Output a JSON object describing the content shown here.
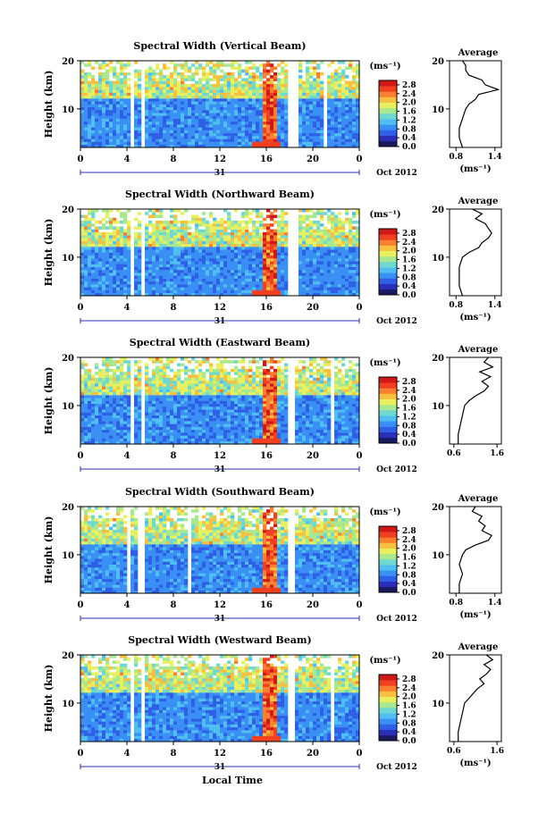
{
  "x_axis_label": "Local Time",
  "colors": {
    "colormap": [
      "#1a1a60",
      "#2a2fb8",
      "#2f5fe6",
      "#3a8ff5",
      "#4fbef0",
      "#6fd8d0",
      "#a8e890",
      "#e8f060",
      "#f8c040",
      "#f88030",
      "#f04020",
      "#d01818"
    ],
    "line": "#000000"
  },
  "chart_data": [
    {
      "type": "heatmap",
      "title": "Spectral Width (Vertical Beam)",
      "ylabel": "Height (km)",
      "xlim": [
        0,
        24
      ],
      "ylim": [
        2,
        20
      ],
      "x_ticks": [
        "0",
        "4",
        "8",
        "12",
        "16",
        "20",
        "0"
      ],
      "y_ticks": [
        "10",
        "20"
      ],
      "date_label": "31",
      "month_label": "Oct 2012",
      "colorbar": {
        "unit": "(ms⁻¹)",
        "ticks": [
          "0.0",
          "0.4",
          "0.8",
          "1.2",
          "1.6",
          "2.0",
          "2.4",
          "2.8"
        ],
        "range": [
          0,
          3.0
        ]
      },
      "data_gaps_hours": [
        [
          4.2,
          4.6
        ],
        [
          5.1,
          5.6
        ],
        [
          18.0,
          18.7
        ],
        [
          21.0,
          21.3
        ]
      ],
      "average": {
        "title": "Average",
        "xlabel": "(ms⁻¹)",
        "x_ticks": [
          "0.8",
          "1.4"
        ],
        "y_ticks": [
          "10",
          "20"
        ],
        "heights": [
          2,
          4,
          6,
          8,
          10,
          11,
          12,
          13,
          14,
          15,
          16,
          17,
          18,
          19,
          20
        ],
        "values": [
          0.9,
          0.85,
          0.85,
          0.9,
          0.95,
          1.0,
          1.1,
          1.15,
          1.45,
          1.25,
          1.2,
          1.0,
          0.95,
          0.95,
          0.9
        ]
      }
    },
    {
      "type": "heatmap",
      "title": "Spectral Width (Northward Beam)",
      "ylabel": "Height (km)",
      "xlim": [
        0,
        24
      ],
      "ylim": [
        2,
        20
      ],
      "x_ticks": [
        "0",
        "4",
        "8",
        "12",
        "16",
        "20",
        "0"
      ],
      "y_ticks": [
        "10",
        "20"
      ],
      "date_label": "31",
      "month_label": "Oct 2012",
      "colorbar": {
        "unit": "(ms⁻¹)",
        "ticks": [
          "0.0",
          "0.4",
          "0.8",
          "1.2",
          "1.6",
          "2.0",
          "2.4",
          "2.8"
        ],
        "range": [
          0,
          3.0
        ]
      },
      "data_gaps_hours": [
        [
          4.2,
          4.6
        ],
        [
          5.1,
          5.6
        ],
        [
          18.0,
          18.7
        ]
      ],
      "average": {
        "title": "Average",
        "xlabel": "(ms⁻¹)",
        "x_ticks": [
          "0.8",
          "1.4"
        ],
        "y_ticks": [
          "10",
          "20"
        ],
        "heights": [
          2,
          4,
          6,
          8,
          10,
          11,
          12,
          13,
          14,
          15,
          16,
          17,
          18,
          19,
          20
        ],
        "values": [
          0.9,
          0.85,
          0.85,
          0.85,
          0.9,
          1.0,
          1.15,
          1.2,
          1.3,
          1.35,
          1.3,
          1.25,
          1.1,
          1.2,
          1.05
        ]
      }
    },
    {
      "type": "heatmap",
      "title": "Spectral Width (Eastward Beam)",
      "ylabel": "Height (km)",
      "xlim": [
        0,
        24
      ],
      "ylim": [
        2,
        20
      ],
      "x_ticks": [
        "0",
        "4",
        "8",
        "12",
        "16",
        "20",
        "0"
      ],
      "y_ticks": [
        "10",
        "20"
      ],
      "date_label": "31",
      "month_label": "Oct 2012",
      "colorbar": {
        "unit": "(ms⁻¹)",
        "ticks": [
          "0.0",
          "0.4",
          "0.8",
          "1.2",
          "1.6",
          "2.0",
          "2.4",
          "2.8"
        ],
        "range": [
          0,
          3.0
        ]
      },
      "data_gaps_hours": [
        [
          4.2,
          4.6
        ],
        [
          5.1,
          5.6
        ],
        [
          18.0,
          18.6
        ],
        [
          21.5,
          21.9
        ]
      ],
      "average": {
        "title": "Average",
        "xlabel": "",
        "x_ticks": [
          "0.6",
          "1.6"
        ],
        "y_ticks": [
          "10",
          "20"
        ],
        "heights": [
          2,
          4,
          6,
          8,
          10,
          11,
          12,
          13,
          14,
          15,
          16,
          17,
          18,
          19,
          20
        ],
        "values": [
          0.7,
          0.7,
          0.75,
          0.8,
          0.85,
          0.95,
          1.1,
          1.3,
          1.4,
          1.25,
          1.45,
          1.2,
          1.5,
          1.3,
          1.4
        ]
      }
    },
    {
      "type": "heatmap",
      "title": "Spectral Width (Southward Beam)",
      "ylabel": "Height (km)",
      "xlim": [
        0,
        24
      ],
      "ylim": [
        2,
        20
      ],
      "x_ticks": [
        "0",
        "4",
        "8",
        "12",
        "16",
        "20",
        "0"
      ],
      "y_ticks": [
        "10",
        "20"
      ],
      "date_label": "31",
      "month_label": "Oct 2012",
      "colorbar": {
        "unit": "(ms⁻¹)",
        "ticks": [
          "0.0",
          "0.4",
          "0.8",
          "1.2",
          "1.6",
          "2.0",
          "2.4",
          "2.8"
        ],
        "range": [
          0,
          3.0
        ]
      },
      "data_gaps_hours": [
        [
          4.0,
          4.4
        ],
        [
          4.9,
          5.4
        ],
        [
          9.3,
          9.6
        ],
        [
          18.0,
          18.6
        ]
      ],
      "average": {
        "title": "Average",
        "xlabel": "(ms⁻¹)",
        "x_ticks": [
          "0.8",
          "1.4"
        ],
        "y_ticks": [
          "10",
          "20"
        ],
        "heights": [
          2,
          4,
          6,
          8,
          10,
          11,
          12,
          13,
          14,
          15,
          16,
          17,
          18,
          19,
          20
        ],
        "values": [
          0.85,
          0.85,
          0.9,
          0.85,
          0.9,
          0.95,
          1.1,
          1.3,
          1.35,
          1.2,
          1.25,
          1.15,
          1.2,
          1.05,
          1.1
        ]
      }
    },
    {
      "type": "heatmap",
      "title": "Spectral Width (Westward Beam)",
      "ylabel": "Height (km)",
      "xlim": [
        0,
        24
      ],
      "ylim": [
        2,
        20
      ],
      "x_ticks": [
        "0",
        "4",
        "8",
        "12",
        "16",
        "20",
        "0"
      ],
      "y_ticks": [
        "10",
        "20"
      ],
      "date_label": "31",
      "month_label": "Oct 2012",
      "colorbar": {
        "unit": "(ms⁻¹)",
        "ticks": [
          "0.0",
          "0.4",
          "0.8",
          "1.2",
          "1.6",
          "2.0",
          "2.4",
          "2.8"
        ],
        "range": [
          0,
          3.0
        ]
      },
      "data_gaps_hours": [
        [
          4.2,
          4.6
        ],
        [
          5.1,
          5.6
        ],
        [
          18.0,
          18.6
        ],
        [
          21.5,
          21.8
        ]
      ],
      "average": {
        "title": "Average",
        "xlabel": "(ms⁻¹)",
        "x_ticks": [
          "0.6",
          "1.6"
        ],
        "y_ticks": [
          "10",
          "20"
        ],
        "heights": [
          2,
          4,
          6,
          8,
          10,
          11,
          12,
          13,
          14,
          15,
          16,
          17,
          18,
          19,
          20
        ],
        "values": [
          0.7,
          0.7,
          0.75,
          0.8,
          0.85,
          0.95,
          1.05,
          1.15,
          1.3,
          1.2,
          1.35,
          1.45,
          1.3,
          1.5,
          1.35
        ]
      }
    }
  ]
}
